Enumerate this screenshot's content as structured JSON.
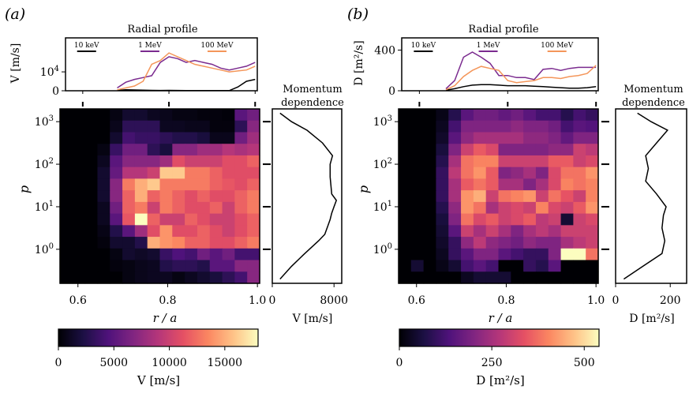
{
  "chart_data": [
    {
      "panel_label": "(a)",
      "type": "line",
      "title": "Radial profile",
      "ylabel": "V [m/s]",
      "xlim": [
        0.56,
        1.005
      ],
      "ylim": [
        0,
        28000
      ],
      "yticks": [
        {
          "v": 0,
          "label": "0"
        },
        {
          "v": 10000,
          "label": "10^4"
        }
      ],
      "legend_position": "top",
      "series": [
        {
          "name": "10 keV",
          "color": "#000000",
          "x": [
            0.68,
            0.7,
            0.72,
            0.74,
            0.76,
            0.78,
            0.8,
            0.82,
            0.84,
            0.86,
            0.88,
            0.9,
            0.92,
            0.94,
            0.96,
            0.98,
            1.0
          ],
          "y": [
            200,
            500,
            400,
            300,
            200,
            150,
            200,
            150,
            100,
            100,
            100,
            100,
            100,
            100,
            2000,
            5000,
            6000
          ]
        },
        {
          "name": "1 MeV",
          "color": "#7b2b8f",
          "x": [
            0.68,
            0.7,
            0.72,
            0.74,
            0.76,
            0.78,
            0.8,
            0.82,
            0.84,
            0.86,
            0.88,
            0.9,
            0.92,
            0.94,
            0.96,
            0.98,
            1.0
          ],
          "y": [
            1500,
            4500,
            6000,
            7000,
            8000,
            15000,
            18000,
            17000,
            15000,
            16000,
            15000,
            14000,
            12000,
            11000,
            12000,
            13000,
            15000
          ]
        },
        {
          "name": "100 MeV",
          "color": "#f4965a",
          "x": [
            0.68,
            0.7,
            0.72,
            0.74,
            0.76,
            0.78,
            0.8,
            0.82,
            0.84,
            0.86,
            0.88,
            0.9,
            0.92,
            0.94,
            0.96,
            0.98,
            1.0
          ],
          "y": [
            500,
            1500,
            2500,
            5000,
            14000,
            16000,
            20000,
            18000,
            16000,
            14000,
            13000,
            12000,
            11000,
            10000,
            10500,
            11000,
            13000
          ]
        }
      ]
    },
    {
      "panel_label": "(a)",
      "type": "heatmap",
      "xlabel": "r / a",
      "ylabel": "p",
      "x_range": [
        0.56,
        1.005
      ],
      "log10p_range": [
        -0.8,
        3.3
      ],
      "xticks": [
        "0.6",
        "0.8",
        "1.0"
      ],
      "yticks": [
        {
          "e": 0,
          "label": "10^0"
        },
        {
          "e": 1,
          "label": "10^1"
        },
        {
          "e": 2,
          "label": "10^2"
        },
        {
          "e": 3,
          "label": "10^3"
        }
      ],
      "colorscale": "magma",
      "clim": [
        0,
        18000
      ],
      "colorbar": {
        "label": "V [m/s]",
        "ticks": [
          0,
          5000,
          10000,
          15000
        ],
        "tick_labels": [
          "0",
          "5000",
          "10000",
          "15000"
        ]
      },
      "grid": [
        [
          0,
          0,
          0,
          0,
          500,
          1500,
          1500,
          1000,
          800,
          500,
          500,
          300,
          300,
          200,
          5000,
          6000
        ],
        [
          0,
          0,
          0,
          0,
          800,
          3000,
          3000,
          3000,
          1000,
          1000,
          800,
          800,
          300,
          300,
          3000,
          7000
        ],
        [
          0,
          0,
          0,
          0,
          1500,
          4000,
          3500,
          3500,
          3000,
          2500,
          2500,
          2000,
          800,
          800,
          6000,
          8000
        ],
        [
          0,
          0,
          0,
          500,
          3500,
          6000,
          6000,
          3000,
          2000,
          7000,
          7000,
          8000,
          8000,
          9000,
          8500,
          9000
        ],
        [
          0,
          0,
          0,
          1000,
          5000,
          7000,
          7000,
          7000,
          8000,
          11000,
          10000,
          10000,
          10000,
          11000,
          11000,
          12000
        ],
        [
          0,
          0,
          0,
          1500,
          5500,
          9000,
          9000,
          10000,
          16000,
          16000,
          13000,
          13000,
          12000,
          11000,
          11000,
          11000
        ],
        [
          0,
          0,
          0,
          1500,
          7000,
          13000,
          15000,
          16000,
          13000,
          13000,
          13000,
          13000,
          12000,
          11500,
          11000,
          12000
        ],
        [
          0,
          0,
          0,
          1500,
          7000,
          12000,
          15000,
          12000,
          13000,
          12000,
          11000,
          12000,
          11000,
          11000,
          12000,
          13000
        ],
        [
          0,
          0,
          0,
          1000,
          6000,
          12000,
          13000,
          10000,
          13000,
          12000,
          11000,
          11000,
          12000,
          10000,
          12000,
          13000
        ],
        [
          0,
          0,
          0,
          1000,
          5000,
          11500,
          18000,
          12000,
          10000,
          10000,
          12000,
          11000,
          10000,
          10000,
          11000,
          12000
        ],
        [
          0,
          0,
          0,
          600,
          2500,
          5000,
          8000,
          11000,
          14000,
          11000,
          11000,
          12000,
          11000,
          10000,
          11000,
          12000
        ],
        [
          0,
          0,
          0,
          300,
          1500,
          1500,
          2500,
          15000,
          14000,
          13500,
          12000,
          12000,
          11000,
          11000,
          12000,
          13000
        ],
        [
          0,
          0,
          0,
          0,
          500,
          1500,
          1200,
          1500,
          3500,
          4500,
          4000,
          6000,
          5000,
          6000,
          4000,
          4000
        ],
        [
          0,
          0,
          0,
          0,
          300,
          500,
          800,
          1000,
          2500,
          3000,
          3000,
          2500,
          5000,
          5000,
          7000,
          7000
        ],
        [
          0,
          0,
          0,
          0,
          0,
          500,
          800,
          1000,
          1000,
          500,
          1000,
          1500,
          2000,
          3000,
          4000,
          7000
        ]
      ]
    },
    {
      "panel_label": "(a)",
      "type": "line",
      "title": "Momentum dependence",
      "xlabel": "V [m/s]",
      "xlim": [
        0,
        9000
      ],
      "xticks": [
        0,
        8000
      ],
      "xtick_labels": [
        "0",
        "8000"
      ],
      "series": [
        {
          "name": "",
          "color": "#000000",
          "x": [
            1000,
            2500,
            4200,
            6000,
            6800,
            7200,
            7500,
            7700,
            8000,
            8300,
            7700,
            7600,
            7500,
            7500,
            7800,
            6500,
            4500,
            2500,
            1000
          ],
          "log10p": [
            -0.7,
            -0.4,
            -0.1,
            0.2,
            0.35,
            0.55,
            0.7,
            0.85,
            1.0,
            1.15,
            1.3,
            1.5,
            1.7,
            2.0,
            2.2,
            2.5,
            2.8,
            3.0,
            3.2
          ]
        }
      ]
    },
    {
      "panel_label": "(b)",
      "type": "line",
      "title": "Radial profile",
      "ylabel": "D [m²/s]",
      "xlim": [
        0.56,
        1.005
      ],
      "ylim": [
        0,
        520
      ],
      "yticks": [
        {
          "v": 0,
          "label": "0"
        },
        {
          "v": 400,
          "label": "400"
        }
      ],
      "legend_position": "top",
      "series": [
        {
          "name": "10 keV",
          "color": "#000000",
          "x": [
            0.66,
            0.68,
            0.7,
            0.72,
            0.74,
            0.76,
            0.78,
            0.8,
            0.82,
            0.84,
            0.86,
            0.88,
            0.9,
            0.92,
            0.94,
            0.96,
            0.98,
            1.0
          ],
          "y": [
            5,
            20,
            40,
            55,
            60,
            60,
            55,
            50,
            50,
            50,
            45,
            40,
            35,
            30,
            25,
            25,
            30,
            40
          ]
        },
        {
          "name": "1 MeV",
          "color": "#7b2b8f",
          "x": [
            0.66,
            0.68,
            0.7,
            0.72,
            0.74,
            0.76,
            0.78,
            0.8,
            0.82,
            0.84,
            0.86,
            0.88,
            0.9,
            0.92,
            0.94,
            0.96,
            0.98,
            1.0
          ],
          "y": [
            20,
            100,
            330,
            380,
            330,
            270,
            150,
            150,
            130,
            130,
            110,
            210,
            220,
            200,
            220,
            230,
            230,
            230
          ]
        },
        {
          "name": "100 MeV",
          "color": "#f4965a",
          "x": [
            0.66,
            0.68,
            0.7,
            0.72,
            0.74,
            0.76,
            0.78,
            0.8,
            0.82,
            0.84,
            0.86,
            0.88,
            0.9,
            0.92,
            0.94,
            0.96,
            0.98,
            1.0
          ],
          "y": [
            10,
            50,
            140,
            200,
            240,
            220,
            200,
            100,
            80,
            90,
            100,
            130,
            130,
            120,
            140,
            150,
            170,
            250
          ]
        }
      ]
    },
    {
      "panel_label": "(b)",
      "type": "heatmap",
      "xlabel": "r / a",
      "ylabel": "p",
      "x_range": [
        0.56,
        1.005
      ],
      "log10p_range": [
        -0.8,
        3.3
      ],
      "xticks": [
        "0.6",
        "0.8",
        "1.0"
      ],
      "yticks": [
        {
          "e": 0,
          "label": "10^0"
        },
        {
          "e": 1,
          "label": "10^1"
        },
        {
          "e": 2,
          "label": "10^2"
        },
        {
          "e": 3,
          "label": "10^3"
        }
      ],
      "colorscale": "magma",
      "clim": [
        0,
        540
      ],
      "colorbar": {
        "label": "D [m²/s]",
        "ticks": [
          0,
          250,
          500
        ],
        "tick_labels": [
          "0",
          "250",
          "500"
        ]
      },
      "grid": [
        [
          0,
          0,
          0,
          20,
          80,
          150,
          180,
          180,
          160,
          180,
          150,
          120,
          120,
          80,
          120,
          100
        ],
        [
          0,
          0,
          0,
          30,
          120,
          200,
          200,
          200,
          200,
          220,
          200,
          200,
          180,
          120,
          150,
          140
        ],
        [
          0,
          0,
          0,
          40,
          150,
          220,
          250,
          250,
          250,
          250,
          220,
          220,
          200,
          160,
          200,
          200
        ],
        [
          0,
          0,
          0,
          60,
          200,
          300,
          350,
          320,
          200,
          200,
          200,
          200,
          220,
          220,
          300,
          280
        ],
        [
          0,
          0,
          0,
          80,
          250,
          380,
          400,
          400,
          300,
          300,
          300,
          300,
          350,
          350,
          300,
          320
        ],
        [
          0,
          0,
          0,
          100,
          280,
          380,
          420,
          350,
          200,
          220,
          250,
          200,
          320,
          380,
          380,
          420
        ],
        [
          0,
          0,
          0,
          100,
          250,
          350,
          380,
          350,
          250,
          250,
          200,
          250,
          320,
          400,
          380,
          400
        ],
        [
          0,
          0,
          0,
          100,
          250,
          420,
          450,
          300,
          380,
          400,
          420,
          300,
          380,
          340,
          300,
          400
        ],
        [
          0,
          0,
          0,
          80,
          220,
          420,
          380,
          250,
          300,
          320,
          300,
          400,
          320,
          300,
          350,
          420
        ],
        [
          0,
          0,
          0,
          60,
          200,
          380,
          320,
          350,
          300,
          320,
          350,
          280,
          300,
          50,
          300,
          320
        ],
        [
          0,
          0,
          0,
          50,
          150,
          300,
          250,
          300,
          250,
          200,
          250,
          280,
          250,
          300,
          300,
          300
        ],
        [
          0,
          0,
          0,
          40,
          100,
          220,
          280,
          220,
          200,
          180,
          220,
          200,
          200,
          250,
          280,
          300
        ],
        [
          0,
          0,
          0,
          30,
          100,
          150,
          200,
          200,
          150,
          120,
          100,
          100,
          200,
          550,
          550,
          380
        ],
        [
          0,
          50,
          0,
          20,
          50,
          120,
          150,
          120,
          0,
          0,
          100,
          80,
          150,
          0,
          0,
          0
        ],
        [
          0,
          0,
          0,
          0,
          0,
          30,
          50,
          50,
          50,
          0,
          0,
          0,
          0,
          0,
          0,
          0
        ]
      ]
    },
    {
      "panel_label": "(b)",
      "type": "line",
      "title": "Momentum dependence",
      "xlabel": "D [m²/s]",
      "xlim": [
        0,
        260
      ],
      "xticks": [
        0,
        200
      ],
      "xtick_labels": [
        "0",
        "200"
      ],
      "series": [
        {
          "name": "",
          "color": "#000000",
          "x": [
            30,
            100,
            170,
            180,
            170,
            175,
            185,
            150,
            110,
            120,
            110,
            150,
            190,
            130,
            80
          ],
          "log10p": [
            -0.7,
            -0.4,
            -0.1,
            0.2,
            0.5,
            0.8,
            1.0,
            1.3,
            1.6,
            1.9,
            2.2,
            2.5,
            2.8,
            3.0,
            3.2
          ]
        }
      ]
    }
  ]
}
